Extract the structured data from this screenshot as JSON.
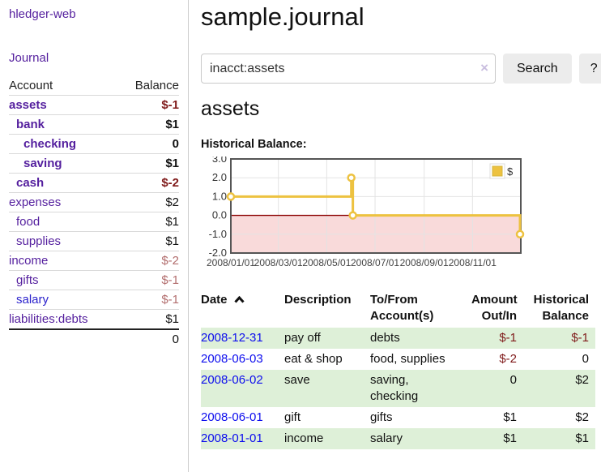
{
  "app": {
    "brand": "hledger-web"
  },
  "sidebar": {
    "journal_link": "Journal",
    "accounts": {
      "header_account": "Account",
      "header_balance": "Balance",
      "rows": [
        {
          "name": "assets",
          "level": 0,
          "bold": true,
          "balance": "$-1",
          "balance_style": "neg-strong"
        },
        {
          "name": "bank",
          "level": 1,
          "bold": true,
          "balance": "$1",
          "balance_style": "pos"
        },
        {
          "name": "checking",
          "level": 2,
          "bold": true,
          "balance": "0",
          "balance_style": "pos"
        },
        {
          "name": "saving",
          "level": 2,
          "bold": true,
          "balance": "$1",
          "balance_style": "pos"
        },
        {
          "name": "cash",
          "level": 1,
          "bold": true,
          "balance": "$-2",
          "balance_style": "neg-strong"
        },
        {
          "name": "expenses",
          "level": 0,
          "bold": false,
          "balance": "$2",
          "balance_style": "pos"
        },
        {
          "name": "food",
          "level": 1,
          "bold": false,
          "balance": "$1",
          "balance_style": "pos"
        },
        {
          "name": "supplies",
          "level": 1,
          "bold": false,
          "balance": "$1",
          "balance_style": "pos"
        },
        {
          "name": "income",
          "level": 0,
          "bold": false,
          "balance": "$-2",
          "balance_style": "neg-muted"
        },
        {
          "name": "gifts",
          "level": 1,
          "bold": false,
          "balance": "$-1",
          "balance_style": "neg-muted"
        },
        {
          "name": "salary",
          "level": 1,
          "bold": false,
          "blue": true,
          "balance": "$-1",
          "balance_style": "neg-muted"
        },
        {
          "name": "liabilities:debts",
          "level": 0,
          "bold": false,
          "balance": "$1",
          "balance_style": "pos"
        }
      ],
      "total": "0"
    }
  },
  "header": {
    "title": "sample.journal"
  },
  "search": {
    "value": "inacct:assets",
    "clear_icon": "×",
    "button_label": "Search",
    "help_label": "?"
  },
  "account_page": {
    "title": "assets",
    "chart_label": "Historical Balance:"
  },
  "chart_data": {
    "type": "line",
    "step": true,
    "title": "Historical Balance:",
    "series": [
      {
        "name": "$",
        "color": "#edc240",
        "points": [
          [
            "2008-01-01",
            1
          ],
          [
            "2008-06-01",
            2
          ],
          [
            "2008-06-03",
            0
          ],
          [
            "2008-12-31",
            -1
          ]
        ]
      }
    ],
    "x_range": [
      "2008-01-01",
      "2009-01-01"
    ],
    "x_ticks": [
      {
        "date": "2008-01-01",
        "label": "2008/01/01"
      },
      {
        "date": "2008-03-01",
        "label": "2008/03/01"
      },
      {
        "date": "2008-05-01",
        "label": "2008/05/01"
      },
      {
        "date": "2008-07-01",
        "label": "2008/07/01"
      },
      {
        "date": "2008-09-01",
        "label": "2008/09/01"
      },
      {
        "date": "2008-11-01",
        "label": "2008/11/01"
      }
    ],
    "ylim": [
      -2,
      3
    ],
    "y_ticks": [
      "3.0",
      "2.0",
      "1.0",
      "0.0",
      "-1.0",
      "-2.0"
    ],
    "grid": true,
    "negative_region_fill": "#f9dada",
    "zero_line_color": "#8b0000",
    "line_color": "#edc240",
    "legend_position": "top-right",
    "legend_label": "$"
  },
  "register_table": {
    "headers": [
      "Date",
      "Description",
      "To/From Account(s)",
      "Amount Out/In",
      "Historical Balance"
    ],
    "rows": [
      {
        "date": "2008-12-31",
        "description": "pay off",
        "accounts": "debts",
        "amount": "$-1",
        "amount_neg": true,
        "balance": "$-1",
        "balance_neg": true
      },
      {
        "date": "2008-06-03",
        "description": "eat & shop",
        "accounts": "food, supplies",
        "amount": "$-2",
        "amount_neg": true,
        "balance": "0",
        "balance_neg": false
      },
      {
        "date": "2008-06-02",
        "description": "save",
        "accounts": "saving,\nchecking",
        "amount": "0",
        "amount_neg": false,
        "balance": "$2",
        "balance_neg": false
      },
      {
        "date": "2008-06-01",
        "description": "gift",
        "accounts": "gifts",
        "amount": "$1",
        "amount_neg": false,
        "balance": "$2",
        "balance_neg": false
      },
      {
        "date": "2008-01-01",
        "description": "income",
        "accounts": "salary",
        "amount": "$1",
        "amount_neg": false,
        "balance": "$1",
        "balance_neg": false
      }
    ]
  }
}
